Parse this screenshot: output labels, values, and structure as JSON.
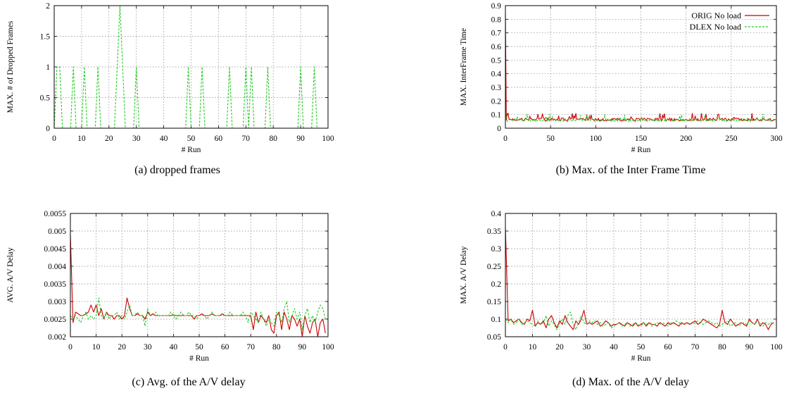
{
  "chart_data": [
    {
      "type": "line",
      "xlabel": "# Run",
      "ylabel": "MAX. # of Dropped Frames",
      "caption": "(a) dropped frames",
      "xlim": [
        0,
        100
      ],
      "ylim": [
        0,
        2
      ],
      "xticks": [
        "0",
        "10",
        "20",
        "30",
        "40",
        "50",
        "60",
        "70",
        "80",
        "90",
        "100"
      ],
      "yticks": [
        "0",
        "0.5",
        "1",
        "1.5",
        "2"
      ],
      "grid": true,
      "series": [
        {
          "color": "#cc0000",
          "dashed": false,
          "x": [
            0,
            100
          ],
          "y": [
            0,
            0
          ]
        },
        {
          "color": "#22cc22",
          "dashed": true,
          "x": [
            0,
            1,
            2,
            3,
            6,
            7,
            8,
            10,
            11,
            12,
            15,
            16,
            17,
            22,
            24,
            26,
            29,
            30,
            31,
            48,
            49,
            50,
            53,
            54,
            55,
            63,
            64,
            65,
            69,
            70,
            71,
            72,
            73,
            77,
            78,
            79,
            89,
            90,
            91,
            94,
            95,
            96,
            100
          ],
          "y": [
            0,
            1,
            1,
            0,
            0,
            1,
            0,
            0,
            1,
            0,
            0,
            1,
            0,
            0,
            2,
            0,
            0,
            1,
            0,
            0,
            1,
            0,
            0,
            1,
            0,
            0,
            1,
            0,
            0,
            1,
            0,
            1,
            0,
            0,
            1,
            0,
            0,
            1,
            0,
            0,
            1,
            0,
            0
          ]
        }
      ]
    },
    {
      "type": "line",
      "xlabel": "# Run",
      "ylabel": "MAX. InterFrame Time",
      "caption": "(b) Max. of the Inter Frame Time",
      "xlim": [
        0,
        300
      ],
      "ylim": [
        0,
        0.9
      ],
      "xticks": [
        "0",
        "50",
        "100",
        "150",
        "200",
        "250",
        "300"
      ],
      "yticks": [
        "0",
        "0.1",
        "0.2",
        "0.3",
        "0.4",
        "0.5",
        "0.6",
        "0.7",
        "0.8",
        "0.9"
      ],
      "grid": true,
      "legend": [
        "ORIG No load",
        "DLEX No load"
      ],
      "series": [
        {
          "color": "#cc0000",
          "dashed": false,
          "gen": "spiky",
          "first": 0.84,
          "base": 0.065,
          "amp": 0.025,
          "n": 300,
          "seed": 7
        },
        {
          "color": "#22cc22",
          "dashed": true,
          "gen": "spiky",
          "first": 0.09,
          "base": 0.06,
          "amp": 0.025,
          "n": 300,
          "seed": 19
        }
      ]
    },
    {
      "type": "line",
      "xlabel": "# Run",
      "ylabel": "AVG. A/V Delay",
      "caption": "(c) Avg. of the A/V delay",
      "xlim": [
        0,
        100
      ],
      "ylim": [
        0.002,
        0.0055
      ],
      "xticks": [
        "0",
        "10",
        "20",
        "30",
        "40",
        "50",
        "60",
        "70",
        "80",
        "90",
        "100"
      ],
      "yticks": [
        "0.002",
        "0.0025",
        "0.003",
        "0.0035",
        "0.004",
        "0.0045",
        "0.005",
        "0.0055"
      ],
      "grid": true,
      "series": [
        {
          "color": "#cc0000",
          "dashed": false,
          "x": [
            0,
            1,
            2,
            3,
            4,
            5,
            6,
            7,
            8,
            9,
            10,
            11,
            12,
            13,
            14,
            15,
            16,
            17,
            18,
            19,
            20,
            21,
            22,
            23,
            24,
            25,
            26,
            27,
            28,
            29,
            30,
            31,
            32,
            33,
            34,
            35,
            36,
            37,
            38,
            39,
            40,
            41,
            42,
            43,
            44,
            45,
            46,
            47,
            48,
            49,
            50,
            51,
            52,
            53,
            54,
            55,
            56,
            57,
            58,
            59,
            60,
            61,
            62,
            63,
            64,
            65,
            66,
            67,
            68,
            69,
            70,
            71,
            72,
            73,
            74,
            75,
            76,
            77,
            78,
            79,
            80,
            81,
            82,
            83,
            84,
            85,
            86,
            87,
            88,
            89,
            90,
            91,
            92,
            93,
            94,
            95,
            96,
            97,
            98,
            99
          ],
          "y": [
            0.0049,
            0.0024,
            0.0027,
            0.00265,
            0.0026,
            0.0026,
            0.00265,
            0.0027,
            0.0029,
            0.0027,
            0.0029,
            0.0026,
            0.0028,
            0.0025,
            0.0027,
            0.0026,
            0.0026,
            0.0025,
            0.0026,
            0.0026,
            0.0025,
            0.0026,
            0.0031,
            0.0028,
            0.0026,
            0.0026,
            0.00265,
            0.0026,
            0.0026,
            0.0025,
            0.0027,
            0.0026,
            0.00265,
            0.0026,
            0.0026,
            0.0026,
            0.0026,
            0.0026,
            0.0026,
            0.0026,
            0.00262,
            0.0026,
            0.0026,
            0.0026,
            0.0026,
            0.0026,
            0.0026,
            0.0026,
            0.0025,
            0.0026,
            0.0026,
            0.00265,
            0.0026,
            0.0026,
            0.0026,
            0.00265,
            0.0026,
            0.0026,
            0.0026,
            0.00265,
            0.0026,
            0.0026,
            0.0026,
            0.0026,
            0.0026,
            0.0026,
            0.0026,
            0.0026,
            0.0026,
            0.0026,
            0.0026,
            0.0022,
            0.0027,
            0.0024,
            0.0026,
            0.0025,
            0.0024,
            0.0026,
            0.0022,
            0.0021,
            0.0026,
            0.0027,
            0.0022,
            0.0027,
            0.0025,
            0.0022,
            0.0026,
            0.0025,
            0.0023,
            0.0025,
            0.002,
            0.0026,
            0.0023,
            0.0021,
            0.0024,
            0.0025,
            0.002,
            0.0024,
            0.0025,
            0.0021
          ]
        },
        {
          "color": "#22cc22",
          "dashed": true,
          "x": [
            0,
            1,
            2,
            3,
            4,
            5,
            6,
            7,
            8,
            9,
            10,
            11,
            12,
            13,
            14,
            15,
            16,
            17,
            18,
            19,
            20,
            21,
            22,
            23,
            24,
            25,
            26,
            27,
            28,
            29,
            30,
            31,
            32,
            33,
            34,
            35,
            36,
            37,
            38,
            39,
            40,
            41,
            42,
            43,
            44,
            45,
            46,
            47,
            48,
            49,
            50,
            51,
            52,
            53,
            54,
            55,
            56,
            57,
            58,
            59,
            60,
            61,
            62,
            63,
            64,
            65,
            66,
            67,
            68,
            69,
            70,
            71,
            72,
            73,
            74,
            75,
            76,
            77,
            78,
            79,
            80,
            81,
            82,
            83,
            84,
            85,
            86,
            87,
            88,
            89,
            90,
            91,
            92,
            93,
            94,
            95,
            96,
            97,
            98,
            99
          ],
          "y": [
            0.0026,
            0.0025,
            0.0026,
            0.0025,
            0.0024,
            0.0026,
            0.0027,
            0.0025,
            0.0026,
            0.0025,
            0.0026,
            0.0031,
            0.0026,
            0.0025,
            0.0027,
            0.0025,
            0.0026,
            0.0026,
            0.0027,
            0.0025,
            0.0026,
            0.0025,
            0.0027,
            0.0029,
            0.0026,
            0.0026,
            0.0027,
            0.0026,
            0.0026,
            0.0023,
            0.0028,
            0.0026,
            0.0026,
            0.0027,
            0.0026,
            0.0026,
            0.0026,
            0.0026,
            0.0026,
            0.0027,
            0.0026,
            0.0025,
            0.0026,
            0.0027,
            0.0026,
            0.0026,
            0.0027,
            0.0026,
            0.0026,
            0.0025,
            0.0026,
            0.0026,
            0.0026,
            0.0025,
            0.0026,
            0.0027,
            0.0026,
            0.0026,
            0.0026,
            0.0026,
            0.0026,
            0.0026,
            0.0027,
            0.0026,
            0.0026,
            0.0026,
            0.0026,
            0.0027,
            0.0026,
            0.0024,
            0.0027,
            0.0026,
            0.0025,
            0.0024,
            0.0027,
            0.0025,
            0.0023,
            0.0025,
            0.0024,
            0.0023,
            0.0027,
            0.0026,
            0.0024,
            0.0028,
            0.003,
            0.0024,
            0.0026,
            0.0028,
            0.0025,
            0.0027,
            0.0022,
            0.0026,
            0.0028,
            0.0024,
            0.0026,
            0.0024,
            0.0027,
            0.0029,
            0.0028,
            0.0025
          ]
        }
      ]
    },
    {
      "type": "line",
      "xlabel": "# Run",
      "ylabel": "MAX. A/V Delay",
      "caption": "(d) Max. of the A/V delay",
      "xlim": [
        0,
        100
      ],
      "ylim": [
        0.05,
        0.4
      ],
      "xticks": [
        "0",
        "10",
        "20",
        "30",
        "40",
        "50",
        "60",
        "70",
        "80",
        "90",
        "100"
      ],
      "yticks": [
        "0.05",
        "0.1",
        "0.15",
        "0.2",
        "0.25",
        "0.3",
        "0.35",
        "0.4"
      ],
      "grid": true,
      "series": [
        {
          "color": "#cc0000",
          "dashed": false,
          "x": [
            0,
            1,
            2,
            3,
            4,
            5,
            6,
            7,
            8,
            9,
            10,
            11,
            12,
            13,
            14,
            15,
            16,
            17,
            18,
            19,
            20,
            21,
            22,
            23,
            24,
            25,
            26,
            27,
            28,
            29,
            30,
            31,
            32,
            33,
            34,
            35,
            36,
            37,
            38,
            39,
            40,
            41,
            42,
            43,
            44,
            45,
            46,
            47,
            48,
            49,
            50,
            51,
            52,
            53,
            54,
            55,
            56,
            57,
            58,
            59,
            60,
            61,
            62,
            63,
            64,
            65,
            66,
            67,
            68,
            69,
            70,
            71,
            72,
            73,
            74,
            75,
            76,
            77,
            78,
            79,
            80,
            81,
            82,
            83,
            84,
            85,
            86,
            87,
            88,
            89,
            90,
            91,
            92,
            93,
            94,
            95,
            96,
            97,
            98,
            99
          ],
          "y": [
            0.36,
            0.095,
            0.1,
            0.09,
            0.095,
            0.1,
            0.09,
            0.085,
            0.1,
            0.095,
            0.125,
            0.08,
            0.09,
            0.085,
            0.095,
            0.075,
            0.1,
            0.11,
            0.09,
            0.075,
            0.095,
            0.085,
            0.11,
            0.09,
            0.08,
            0.07,
            0.095,
            0.085,
            0.1,
            0.125,
            0.085,
            0.09,
            0.085,
            0.09,
            0.095,
            0.08,
            0.085,
            0.095,
            0.09,
            0.08,
            0.085,
            0.085,
            0.09,
            0.085,
            0.08,
            0.09,
            0.085,
            0.08,
            0.09,
            0.08,
            0.085,
            0.09,
            0.08,
            0.09,
            0.085,
            0.085,
            0.08,
            0.09,
            0.085,
            0.08,
            0.09,
            0.085,
            0.09,
            0.085,
            0.08,
            0.09,
            0.085,
            0.09,
            0.085,
            0.09,
            0.095,
            0.085,
            0.09,
            0.1,
            0.095,
            0.09,
            0.085,
            0.08,
            0.075,
            0.085,
            0.125,
            0.09,
            0.085,
            0.1,
            0.09,
            0.08,
            0.085,
            0.09,
            0.085,
            0.08,
            0.1,
            0.09,
            0.085,
            0.1,
            0.08,
            0.09,
            0.085,
            0.07,
            0.085,
            0.09
          ]
        },
        {
          "color": "#22cc22",
          "dashed": true,
          "x": [
            0,
            1,
            2,
            3,
            4,
            5,
            6,
            7,
            8,
            9,
            10,
            11,
            12,
            13,
            14,
            15,
            16,
            17,
            18,
            19,
            20,
            21,
            22,
            23,
            24,
            25,
            26,
            27,
            28,
            29,
            30,
            31,
            32,
            33,
            34,
            35,
            36,
            37,
            38,
            39,
            40,
            41,
            42,
            43,
            44,
            45,
            46,
            47,
            48,
            49,
            50,
            51,
            52,
            53,
            54,
            55,
            56,
            57,
            58,
            59,
            60,
            61,
            62,
            63,
            64,
            65,
            66,
            67,
            68,
            69,
            70,
            71,
            72,
            73,
            74,
            75,
            76,
            77,
            78,
            79,
            80,
            81,
            82,
            83,
            84,
            85,
            86,
            87,
            88,
            89,
            90,
            91,
            92,
            93,
            94,
            95,
            96,
            97,
            98,
            99
          ],
          "y": [
            0.1,
            0.09,
            0.1,
            0.085,
            0.09,
            0.1,
            0.085,
            0.09,
            0.095,
            0.09,
            0.085,
            0.08,
            0.095,
            0.085,
            0.09,
            0.11,
            0.08,
            0.095,
            0.085,
            0.07,
            0.09,
            0.1,
            0.085,
            0.11,
            0.12,
            0.085,
            0.07,
            0.09,
            0.11,
            0.09,
            0.085,
            0.095,
            0.09,
            0.095,
            0.085,
            0.09,
            0.08,
            0.085,
            0.09,
            0.075,
            0.08,
            0.085,
            0.09,
            0.08,
            0.085,
            0.09,
            0.08,
            0.085,
            0.09,
            0.085,
            0.08,
            0.09,
            0.085,
            0.09,
            0.08,
            0.085,
            0.09,
            0.085,
            0.09,
            0.085,
            0.08,
            0.09,
            0.085,
            0.095,
            0.09,
            0.085,
            0.09,
            0.085,
            0.09,
            0.085,
            0.09,
            0.095,
            0.09,
            0.085,
            0.09,
            0.095,
            0.09,
            0.085,
            0.09,
            0.08,
            0.085,
            0.09,
            0.095,
            0.08,
            0.085,
            0.09,
            0.08,
            0.085,
            0.09,
            0.085,
            0.095,
            0.09,
            0.085,
            0.095,
            0.09,
            0.08,
            0.09,
            0.085,
            0.09,
            0.085
          ]
        }
      ]
    }
  ]
}
